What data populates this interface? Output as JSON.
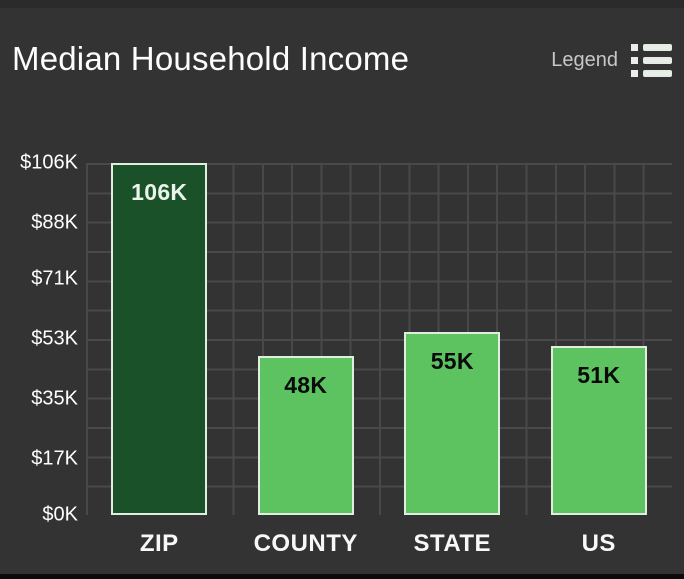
{
  "header": {
    "title": "Median Household Income",
    "legend_label": "Legend"
  },
  "chart_data": {
    "type": "bar",
    "title": "Median Household Income",
    "categories": [
      "ZIP",
      "COUNTY",
      "STATE",
      "US"
    ],
    "values": [
      106,
      48,
      55,
      51
    ],
    "value_labels": [
      "106K",
      "48K",
      "55K",
      "51K"
    ],
    "ylim": [
      0,
      106
    ],
    "y_ticks": [
      "$106K",
      "$88K",
      "$71K",
      "$53K",
      "$35K",
      "$17K",
      "$0K"
    ],
    "y_tick_values": [
      106,
      88,
      71,
      53,
      35,
      17,
      0
    ],
    "grid": true,
    "legend": "collapsed",
    "highlight_index": 0,
    "colors": {
      "background": "#343334",
      "grid_line": "#494949",
      "bar_highlight": "#1b5128",
      "bar_default": "#5cc360",
      "bar_border": "#dfeedf",
      "label_on_highlight": "#eaf4ea",
      "label_on_default": "#0a0a0a",
      "axis_text": "#fefefe",
      "legend_text": "#c7c7c7"
    }
  }
}
